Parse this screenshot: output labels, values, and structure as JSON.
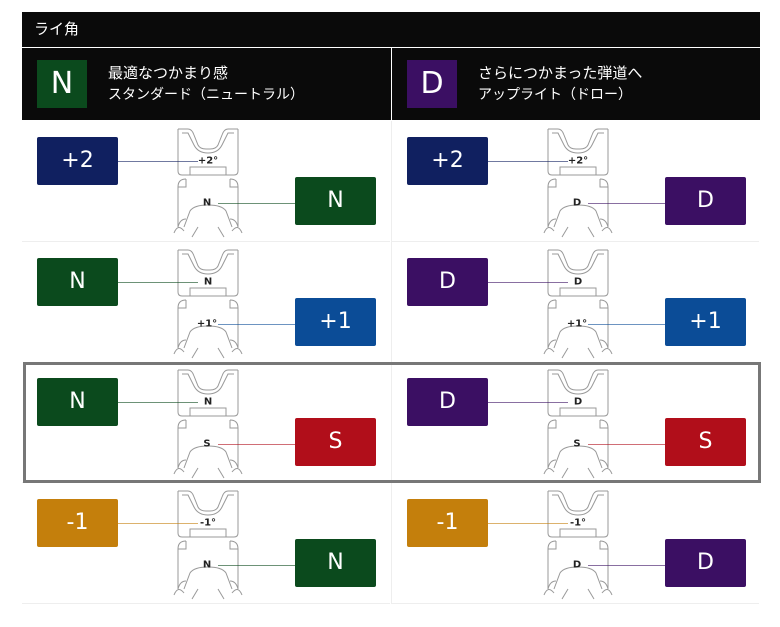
{
  "title": "ライ角",
  "header": [
    {
      "badge": "N",
      "color": "#0b4a1d",
      "line1": "最適なつかまり感",
      "line2": "スタンダード（ニュートラル）"
    },
    {
      "badge": "D",
      "color": "#3b0f63",
      "line1": "さらにつかまった弾道へ",
      "line2": "アップライト（ドロー）"
    }
  ],
  "rows": [
    {
      "highlighted": false,
      "cells": [
        {
          "top": {
            "label": "+2",
            "mark": "+2°",
            "color": "#102060"
          },
          "bottom": {
            "label": "N",
            "mark": "N",
            "color": "#0b4a1d"
          }
        },
        {
          "top": {
            "label": "+2",
            "mark": "+2°",
            "color": "#102060"
          },
          "bottom": {
            "label": "D",
            "mark": "D",
            "color": "#3b0f63"
          }
        }
      ]
    },
    {
      "highlighted": false,
      "cells": [
        {
          "top": {
            "label": "N",
            "mark": "N",
            "color": "#0b4a1d"
          },
          "bottom": {
            "label": "+1",
            "mark": "+1°",
            "color": "#0b4c97"
          }
        },
        {
          "top": {
            "label": "D",
            "mark": "D",
            "color": "#3b0f63"
          },
          "bottom": {
            "label": "+1",
            "mark": "+1°",
            "color": "#0b4c97"
          }
        }
      ]
    },
    {
      "highlighted": true,
      "cells": [
        {
          "top": {
            "label": "N",
            "mark": "N",
            "color": "#0b4a1d"
          },
          "bottom": {
            "label": "S",
            "mark": "S",
            "color": "#b10e1a"
          }
        },
        {
          "top": {
            "label": "D",
            "mark": "D",
            "color": "#3b0f63"
          },
          "bottom": {
            "label": "S",
            "mark": "S",
            "color": "#b10e1a"
          }
        }
      ]
    },
    {
      "highlighted": false,
      "cells": [
        {
          "top": {
            "label": "-1",
            "mark": "-1°",
            "color": "#c47f0c"
          },
          "bottom": {
            "label": "N",
            "mark": "N",
            "color": "#0b4a1d"
          }
        },
        {
          "top": {
            "label": "-1",
            "mark": "-1°",
            "color": "#c47f0c"
          },
          "bottom": {
            "label": "D",
            "mark": "D",
            "color": "#3b0f63"
          }
        }
      ]
    }
  ]
}
